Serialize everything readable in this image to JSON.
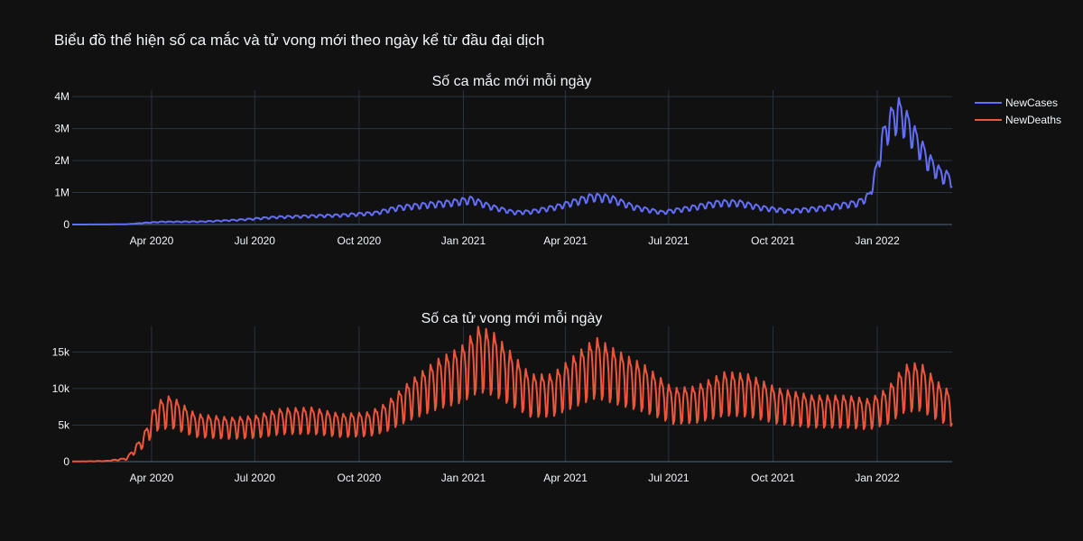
{
  "title": "Biểu đồ thể hiện số ca mắc và tử vong mới theo ngày kể từ đầu đại dịch",
  "colors": {
    "background": "#111111",
    "grid": "#283442",
    "cases": "#636efa",
    "deaths": "#ef553b"
  },
  "legend": {
    "placement": "top-right",
    "items": [
      {
        "name": "NewCases",
        "color": "#636efa"
      },
      {
        "name": "NewDeaths",
        "color": "#ef553b"
      }
    ]
  },
  "chart_data": [
    {
      "type": "line",
      "title": "Số ca mắc mới mỗi ngày",
      "series_name": "NewCases",
      "xlim": [
        "2020-01-22",
        "2022-03-08"
      ],
      "ylim": [
        0,
        4200000
      ],
      "yticks": [
        0,
        1000000,
        2000000,
        3000000,
        4000000
      ],
      "ytick_labels": [
        "0",
        "1M",
        "2M",
        "3M",
        "4M"
      ],
      "xticks": [
        "2020-04-01",
        "2020-07-01",
        "2020-10-01",
        "2021-01-01",
        "2021-04-01",
        "2021-07-01",
        "2021-10-01",
        "2022-01-01"
      ],
      "xtick_labels": [
        "Apr 2020",
        "Jul 2020",
        "Oct 2020",
        "Jan 2021",
        "Apr 2021",
        "Jul 2021",
        "Oct 2021",
        "Jan 2022"
      ],
      "grid": true,
      "weekly_amplitude": 0.15,
      "trend": [
        [
          "2020-01-22",
          500
        ],
        [
          "2020-02-15",
          2000
        ],
        [
          "2020-03-10",
          8000
        ],
        [
          "2020-03-25",
          50000
        ],
        [
          "2020-04-10",
          85000
        ],
        [
          "2020-05-15",
          90000
        ],
        [
          "2020-06-15",
          140000
        ],
        [
          "2020-07-20",
          230000
        ],
        [
          "2020-08-15",
          260000
        ],
        [
          "2020-09-15",
          290000
        ],
        [
          "2020-10-15",
          360000
        ],
        [
          "2020-11-05",
          530000
        ],
        [
          "2020-12-01",
          620000
        ],
        [
          "2020-12-20",
          680000
        ],
        [
          "2021-01-08",
          780000
        ],
        [
          "2021-01-25",
          560000
        ],
        [
          "2021-02-15",
          380000
        ],
        [
          "2021-03-01",
          400000
        ],
        [
          "2021-03-25",
          560000
        ],
        [
          "2021-04-25",
          870000
        ],
        [
          "2021-05-10",
          830000
        ],
        [
          "2021-06-01",
          540000
        ],
        [
          "2021-06-25",
          380000
        ],
        [
          "2021-07-15",
          490000
        ],
        [
          "2021-08-15",
          680000
        ],
        [
          "2021-09-01",
          680000
        ],
        [
          "2021-09-20",
          530000
        ],
        [
          "2021-10-15",
          420000
        ],
        [
          "2021-11-15",
          520000
        ],
        [
          "2021-12-15",
          680000
        ],
        [
          "2021-12-25",
          900000
        ],
        [
          "2022-01-01",
          1800000
        ],
        [
          "2022-01-05",
          2600000
        ],
        [
          "2022-01-12",
          3200000
        ],
        [
          "2022-01-20",
          3500000
        ],
        [
          "2022-01-28",
          3100000
        ],
        [
          "2022-02-05",
          2600000
        ],
        [
          "2022-02-15",
          2000000
        ],
        [
          "2022-02-25",
          1600000
        ],
        [
          "2022-03-08",
          1400000
        ]
      ]
    },
    {
      "type": "line",
      "title": "Số ca tử vong mới mỗi ngày",
      "series_name": "NewDeaths",
      "xlim": [
        "2020-01-22",
        "2022-03-08"
      ],
      "ylim": [
        0,
        18500
      ],
      "yticks": [
        0,
        5000,
        10000,
        15000
      ],
      "ytick_labels": [
        "0",
        "5k",
        "10k",
        "15k"
      ],
      "xticks": [
        "2020-04-01",
        "2020-07-01",
        "2020-10-01",
        "2021-01-01",
        "2021-04-01",
        "2021-07-01",
        "2021-10-01",
        "2022-01-01"
      ],
      "xtick_labels": [
        "Apr 2020",
        "Jul 2020",
        "Oct 2020",
        "Jan 2021",
        "Apr 2021",
        "Jul 2021",
        "Oct 2021",
        "Jan 2022"
      ],
      "grid": true,
      "weekly_amplitude": 0.3,
      "trend": [
        [
          "2020-01-22",
          20
        ],
        [
          "2020-02-20",
          80
        ],
        [
          "2020-03-10",
          400
        ],
        [
          "2020-03-25",
          3000
        ],
        [
          "2020-04-05",
          6500
        ],
        [
          "2020-04-18",
          7200
        ],
        [
          "2020-05-10",
          5200
        ],
        [
          "2020-06-10",
          4800
        ],
        [
          "2020-07-01",
          5000
        ],
        [
          "2020-07-25",
          5800
        ],
        [
          "2020-08-20",
          5900
        ],
        [
          "2020-09-15",
          5200
        ],
        [
          "2020-10-10",
          5400
        ],
        [
          "2020-10-25",
          6400
        ],
        [
          "2020-11-15",
          8800
        ],
        [
          "2020-12-10",
          11200
        ],
        [
          "2020-12-30",
          12500
        ],
        [
          "2021-01-15",
          14800
        ],
        [
          "2021-01-28",
          14000
        ],
        [
          "2021-02-15",
          11500
        ],
        [
          "2021-03-01",
          9500
        ],
        [
          "2021-03-20",
          9500
        ],
        [
          "2021-04-15",
          12200
        ],
        [
          "2021-04-28",
          13500
        ],
        [
          "2021-05-15",
          12200
        ],
        [
          "2021-06-10",
          10500
        ],
        [
          "2021-07-05",
          8000
        ],
        [
          "2021-07-25",
          8200
        ],
        [
          "2021-08-20",
          9800
        ],
        [
          "2021-09-10",
          9500
        ],
        [
          "2021-10-05",
          8000
        ],
        [
          "2021-11-05",
          7200
        ],
        [
          "2021-12-05",
          7200
        ],
        [
          "2021-12-25",
          6800
        ],
        [
          "2022-01-10",
          8000
        ],
        [
          "2022-01-25",
          10500
        ],
        [
          "2022-02-08",
          10800
        ],
        [
          "2022-02-25",
          8500
        ],
        [
          "2022-03-08",
          7500
        ]
      ]
    }
  ]
}
